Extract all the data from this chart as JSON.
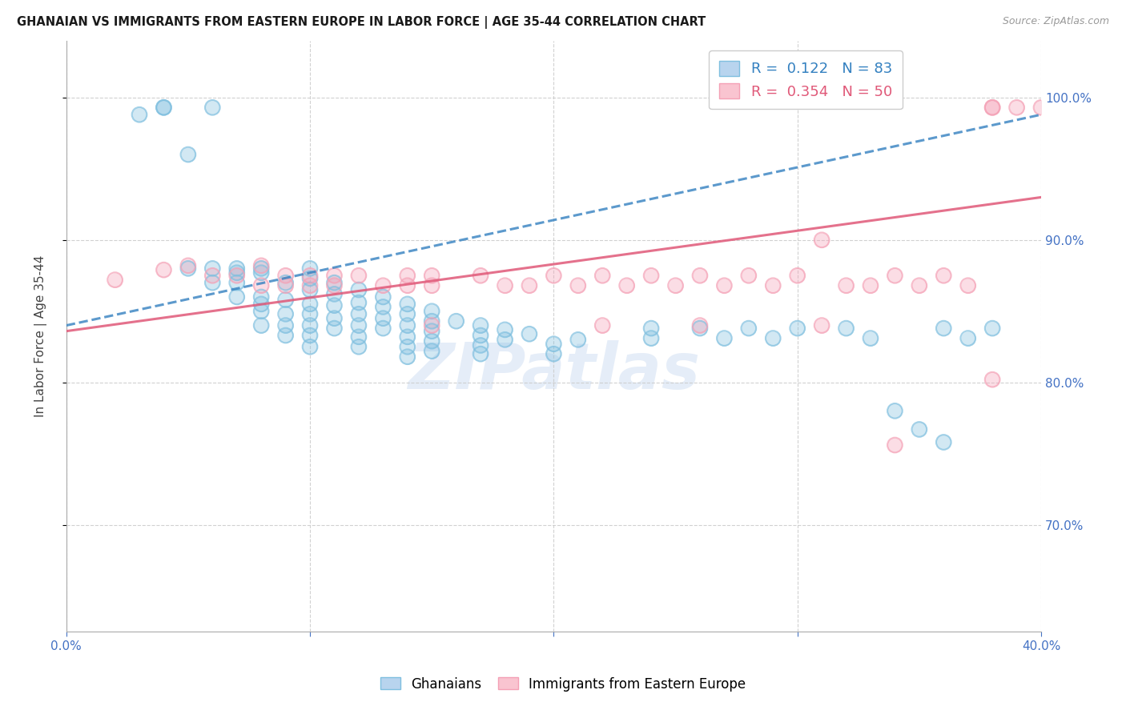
{
  "title": "GHANAIAN VS IMMIGRANTS FROM EASTERN EUROPE IN LABOR FORCE | AGE 35-44 CORRELATION CHART",
  "source": "Source: ZipAtlas.com",
  "ylabel_left": "In Labor Force | Age 35-44",
  "x_min": 0.0,
  "x_max": 0.4,
  "y_min": 0.625,
  "y_max": 1.04,
  "x_ticks": [
    0.0,
    0.1,
    0.2,
    0.3,
    0.4
  ],
  "y_ticks_right": [
    0.7,
    0.8,
    0.9,
    1.0
  ],
  "grid_color": "#cccccc",
  "background_color": "#ffffff",
  "blue_color": "#7fbfdf",
  "pink_color": "#f4a0b5",
  "blue_line_color": "#3380c0",
  "pink_line_color": "#e05878",
  "axis_color": "#4472c4",
  "legend_R_blue": "0.122",
  "legend_N_blue": "83",
  "legend_R_pink": "0.354",
  "legend_N_pink": "50",
  "watermark": "ZIPatlas",
  "blue_x": [
    0.03,
    0.04,
    0.04,
    0.05,
    0.05,
    0.06,
    0.06,
    0.06,
    0.07,
    0.07,
    0.07,
    0.07,
    0.08,
    0.08,
    0.08,
    0.08,
    0.08,
    0.08,
    0.09,
    0.09,
    0.09,
    0.09,
    0.09,
    0.1,
    0.1,
    0.1,
    0.1,
    0.1,
    0.1,
    0.1,
    0.1,
    0.11,
    0.11,
    0.11,
    0.11,
    0.11,
    0.12,
    0.12,
    0.12,
    0.12,
    0.12,
    0.12,
    0.13,
    0.13,
    0.13,
    0.13,
    0.14,
    0.14,
    0.14,
    0.14,
    0.14,
    0.14,
    0.15,
    0.15,
    0.15,
    0.15,
    0.15,
    0.16,
    0.17,
    0.17,
    0.17,
    0.17,
    0.18,
    0.18,
    0.19,
    0.2,
    0.2,
    0.21,
    0.24,
    0.24,
    0.26,
    0.27,
    0.28,
    0.29,
    0.3,
    0.32,
    0.33,
    0.34,
    0.35,
    0.36,
    0.36,
    0.37,
    0.38
  ],
  "blue_y": [
    0.988,
    0.993,
    0.993,
    0.96,
    0.88,
    0.993,
    0.88,
    0.87,
    0.88,
    0.877,
    0.86,
    0.87,
    0.88,
    0.877,
    0.86,
    0.855,
    0.85,
    0.84,
    0.87,
    0.858,
    0.848,
    0.84,
    0.833,
    0.88,
    0.873,
    0.865,
    0.855,
    0.848,
    0.84,
    0.833,
    0.825,
    0.87,
    0.862,
    0.854,
    0.845,
    0.838,
    0.865,
    0.856,
    0.848,
    0.84,
    0.832,
    0.825,
    0.86,
    0.853,
    0.845,
    0.838,
    0.855,
    0.848,
    0.84,
    0.832,
    0.825,
    0.818,
    0.85,
    0.843,
    0.836,
    0.829,
    0.822,
    0.843,
    0.84,
    0.833,
    0.826,
    0.82,
    0.837,
    0.83,
    0.834,
    0.827,
    0.82,
    0.83,
    0.838,
    0.831,
    0.838,
    0.831,
    0.838,
    0.831,
    0.838,
    0.838,
    0.831,
    0.78,
    0.767,
    0.758,
    0.838,
    0.831,
    0.838
  ],
  "pink_x": [
    0.02,
    0.04,
    0.05,
    0.06,
    0.07,
    0.08,
    0.08,
    0.09,
    0.09,
    0.1,
    0.1,
    0.11,
    0.11,
    0.12,
    0.13,
    0.14,
    0.14,
    0.15,
    0.15,
    0.17,
    0.18,
    0.19,
    0.2,
    0.21,
    0.22,
    0.23,
    0.24,
    0.25,
    0.26,
    0.27,
    0.28,
    0.29,
    0.3,
    0.31,
    0.32,
    0.33,
    0.34,
    0.35,
    0.36,
    0.37,
    0.38,
    0.38,
    0.39,
    0.4,
    0.15,
    0.22,
    0.26,
    0.31,
    0.34,
    0.38
  ],
  "pink_y": [
    0.872,
    0.879,
    0.882,
    0.875,
    0.875,
    0.882,
    0.868,
    0.875,
    0.868,
    0.875,
    0.868,
    0.875,
    0.868,
    0.875,
    0.868,
    0.875,
    0.868,
    0.875,
    0.868,
    0.875,
    0.868,
    0.868,
    0.875,
    0.868,
    0.875,
    0.868,
    0.875,
    0.868,
    0.875,
    0.868,
    0.875,
    0.868,
    0.875,
    0.9,
    0.868,
    0.868,
    0.875,
    0.868,
    0.875,
    0.868,
    0.993,
    0.993,
    0.993,
    0.993,
    0.84,
    0.84,
    0.84,
    0.84,
    0.756,
    0.802
  ],
  "blue_trend_x": [
    0.0,
    0.4
  ],
  "blue_trend_y": [
    0.84,
    0.988
  ],
  "pink_trend_x": [
    0.0,
    0.4
  ],
  "pink_trend_y": [
    0.836,
    0.93
  ]
}
